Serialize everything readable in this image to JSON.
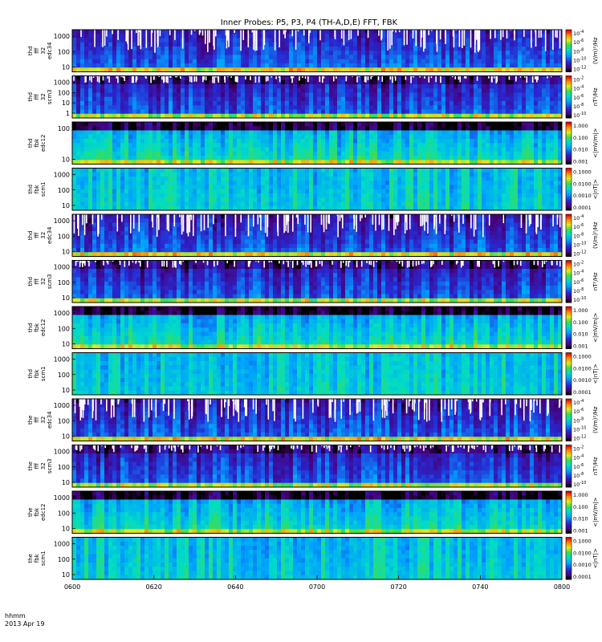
{
  "chart_data": {
    "type": "heatmap",
    "title": "Inner Probes: P5, P3, P4 (TH-A,D,E) FFT, FBK",
    "x": {
      "ticks": [
        "0600",
        "0620",
        "0640",
        "0700",
        "0720",
        "0740",
        "0800"
      ],
      "label_units": "hhmm",
      "date": "2013 Apr 19"
    },
    "panels": [
      {
        "ylabel": [
          "thd",
          "fff",
          "32",
          "edc34"
        ],
        "yticks": [
          "1000",
          "100",
          "10"
        ],
        "colorbar": {
          "ticks": [
            "10-4",
            "10-6",
            "10-8",
            "10-10",
            "10-12"
          ],
          "unit": "(V/m)²/Hz"
        },
        "style": "ffe"
      },
      {
        "ylabel": [
          "thd",
          "fff",
          "32",
          "scm3"
        ],
        "yticks": [
          "1000",
          "100",
          "10",
          "1"
        ],
        "colorbar": {
          "ticks": [
            "10-2",
            "10-4",
            "10-6",
            "10-8",
            "10-10"
          ],
          "unit": "nT²/Hz"
        },
        "style": "ffs"
      },
      {
        "ylabel": [
          "thd",
          "fbk",
          "edc12"
        ],
        "yticks": [
          "100",
          "10"
        ],
        "colorbar": {
          "ticks": [
            "1.000",
            "0.100",
            "0.010",
            "0.001"
          ],
          "unit": "<|mV/m|>"
        },
        "style": "fbe"
      },
      {
        "ylabel": [
          "thd",
          "fbk",
          "scm1"
        ],
        "yticks": [
          "1000",
          "100",
          "10"
        ],
        "colorbar": {
          "ticks": [
            "0.1000",
            "0.0100",
            "0.0010",
            "0.0001"
          ],
          "unit": "<|nT|>"
        },
        "style": "fbs"
      },
      {
        "ylabel": [
          "thd",
          "fff",
          "32",
          "edc34"
        ],
        "yticks": [
          "1000",
          "100",
          "10"
        ],
        "colorbar": {
          "ticks": [
            "10-4",
            "10-6",
            "10-8",
            "10-10",
            "10-12"
          ],
          "unit": "(V/m)²/Hz"
        },
        "style": "ffe"
      },
      {
        "ylabel": [
          "thd",
          "fff",
          "32",
          "scm3"
        ],
        "yticks": [
          "1000",
          "100",
          "10"
        ],
        "colorbar": {
          "ticks": [
            "10-2",
            "10-4",
            "10-6",
            "10-8",
            "10-10"
          ],
          "unit": "nT²/Hz"
        },
        "style": "ffs"
      },
      {
        "ylabel": [
          "thd",
          "fbk",
          "edc12"
        ],
        "yticks": [
          "1000",
          "100",
          "10"
        ],
        "colorbar": {
          "ticks": [
            "1.000",
            "0.100",
            "0.010",
            "0.001"
          ],
          "unit": "<|mV/m|>"
        },
        "style": "fbe"
      },
      {
        "ylabel": [
          "thd",
          "fbk",
          "scm1"
        ],
        "yticks": [
          "1000",
          "100",
          "10"
        ],
        "colorbar": {
          "ticks": [
            "0.1000",
            "0.0100",
            "0.0010",
            "0.0001"
          ],
          "unit": "<|nT|>"
        },
        "style": "fbs"
      },
      {
        "ylabel": [
          "the",
          "fff",
          "32",
          "edc34"
        ],
        "yticks": [
          "1000",
          "100",
          "10"
        ],
        "colorbar": {
          "ticks": [
            "10-4",
            "10-6",
            "10-8",
            "10-10",
            "10-12"
          ],
          "unit": "(V/m)²/Hz"
        },
        "style": "ffe"
      },
      {
        "ylabel": [
          "the",
          "fff",
          "32",
          "scm3"
        ],
        "yticks": [
          "1000",
          "100",
          "10"
        ],
        "colorbar": {
          "ticks": [
            "10-2",
            "10-4",
            "10-6",
            "10-8",
            "10-10"
          ],
          "unit": "nT²/Hz"
        },
        "style": "ffs"
      },
      {
        "ylabel": [
          "the",
          "fbk",
          "edc12"
        ],
        "yticks": [
          "1000",
          "100",
          "10"
        ],
        "colorbar": {
          "ticks": [
            "1.000",
            "0.100",
            "0.010",
            "0.001"
          ],
          "unit": "<|mV/m|>"
        },
        "style": "fbe"
      },
      {
        "ylabel": [
          "the",
          "fbk",
          "scm1"
        ],
        "yticks": [
          "1000",
          "100",
          "10"
        ],
        "colorbar": {
          "ticks": [
            "0.1000",
            "0.0100",
            "0.0010",
            "0.0001"
          ],
          "unit": "<|nT|>"
        },
        "style": "fbs"
      }
    ]
  }
}
